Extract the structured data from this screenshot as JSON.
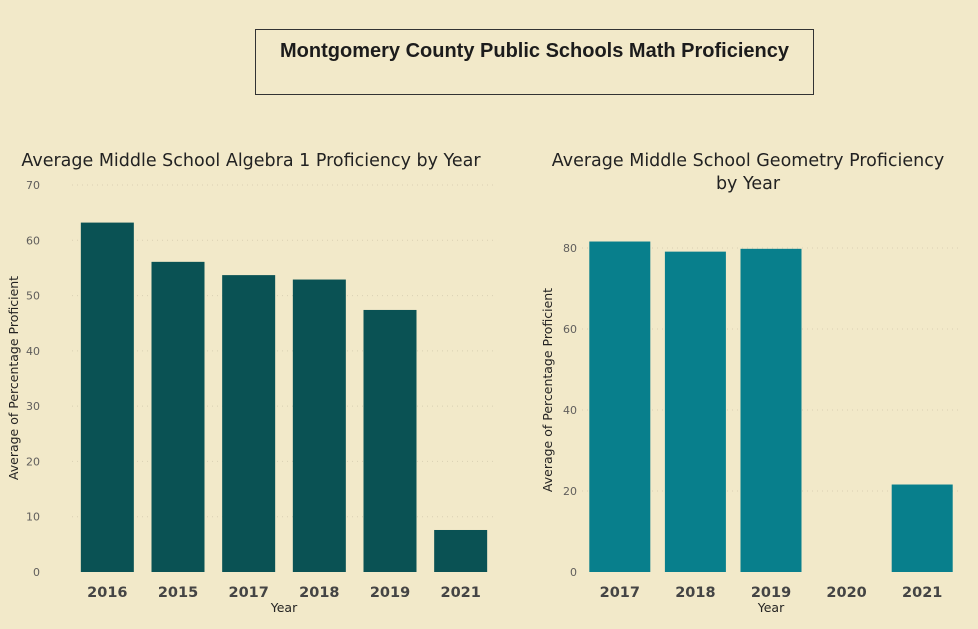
{
  "dashboard": {
    "title": "Montgomery County Public Schools Math Proficiency"
  },
  "chart_data": [
    {
      "type": "bar",
      "title": "Average Middle School Algebra 1 Proficiency by Year",
      "xlabel": "Year",
      "ylabel": "Average of Percentage Proficient",
      "categories": [
        "2016",
        "2015",
        "2017",
        "2018",
        "2019",
        "2021"
      ],
      "values": [
        63.2,
        56.1,
        53.7,
        52.9,
        47.4,
        7.6
      ],
      "ylim": [
        0,
        70
      ],
      "yticks": [
        0,
        10,
        20,
        30,
        40,
        50,
        60,
        70
      ],
      "color": "#0a5254",
      "grid": true,
      "legend": "none"
    },
    {
      "type": "bar",
      "title": "Average Middle School Geometry Proficiency by Year",
      "xlabel": "Year",
      "ylabel": "Average of Percentage Proficient",
      "categories": [
        "2017",
        "2018",
        "2019",
        "2020",
        "2021"
      ],
      "values": [
        81.6,
        79.1,
        79.8,
        0,
        21.6
      ],
      "ylim": [
        0,
        80
      ],
      "yticks": [
        0,
        20,
        40,
        60,
        80
      ],
      "color": "#087f8c",
      "grid": true,
      "legend": "none"
    }
  ]
}
